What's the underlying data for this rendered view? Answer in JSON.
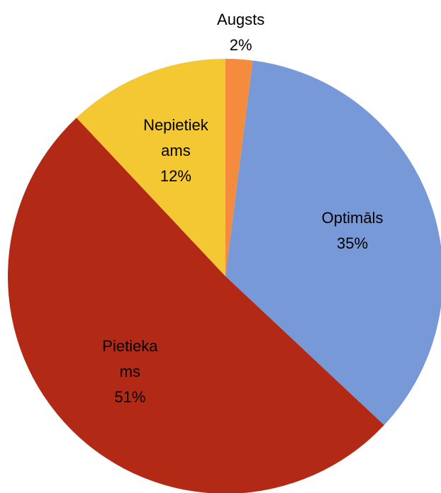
{
  "chart_data": {
    "type": "pie",
    "categories": [
      "Augsts",
      "Optimāls",
      "Pietiekams",
      "Nepietiekams"
    ],
    "values": [
      2,
      35,
      51,
      12
    ],
    "value_labels": [
      "2%",
      "35%",
      "51%",
      "12%"
    ],
    "colors": [
      "#f58b3c",
      "#7799d8",
      "#b22a16",
      "#f4c832"
    ],
    "start_angle": 0,
    "direction": "clockwise"
  }
}
